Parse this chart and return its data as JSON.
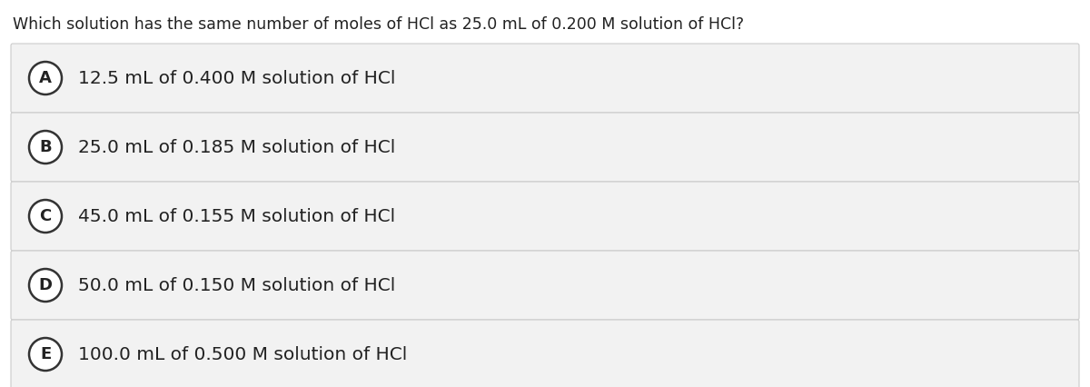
{
  "question": "Which solution has the same number of moles of HCl as 25.0 mL of 0.200 M solution of HCl?",
  "options": [
    {
      "label": "A",
      "text": "12.5 mL of 0.400 M solution of HCl"
    },
    {
      "label": "B",
      "text": "25.0 mL of 0.185 M solution of HCl"
    },
    {
      "label": "C",
      "text": "45.0 mL of 0.155 M solution of HCl"
    },
    {
      "label": "D",
      "text": "50.0 mL of 0.150 M solution of HCl"
    },
    {
      "label": "E",
      "text": "100.0 mL of 0.500 M solution of HCl"
    }
  ],
  "background_color": "#ffffff",
  "option_bg_color": "#f2f2f2",
  "option_border_color": "#cccccc",
  "circle_fill_color": "#ffffff",
  "circle_border_color": "#333333",
  "text_color": "#222222",
  "question_fontsize": 12.5,
  "option_fontsize": 14.5,
  "label_fontsize": 13
}
